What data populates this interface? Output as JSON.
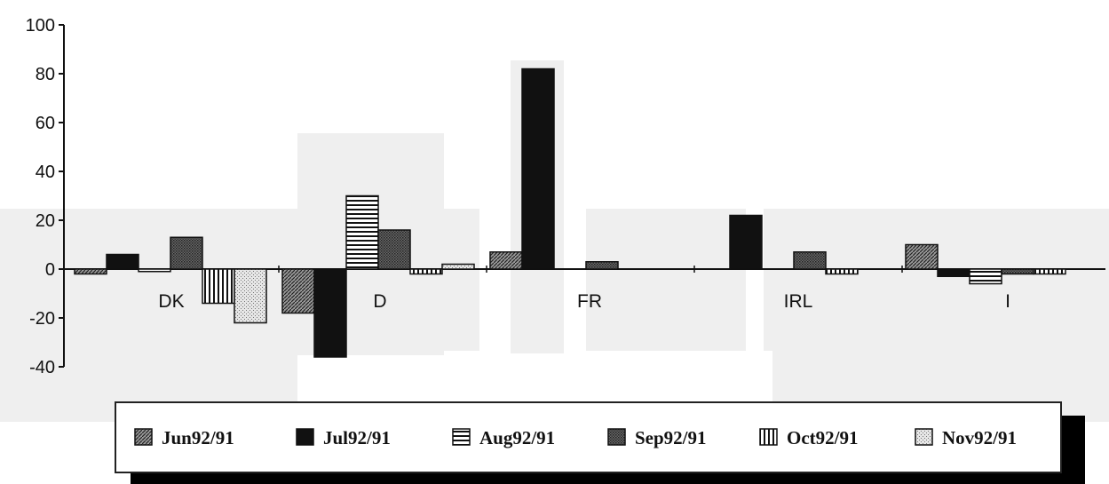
{
  "chart_data": {
    "type": "bar",
    "categories": [
      "DK",
      "D",
      "FR",
      "IRL",
      "I"
    ],
    "series": [
      {
        "name": "Jun92/91",
        "values": [
          -2,
          -18,
          7,
          0,
          10
        ],
        "pattern": "diag"
      },
      {
        "name": "Jul92/91",
        "values": [
          6,
          -36,
          82,
          22,
          -3
        ],
        "pattern": "solid"
      },
      {
        "name": "Aug92/91",
        "values": [
          -1,
          30,
          0,
          0,
          -6
        ],
        "pattern": "hlines"
      },
      {
        "name": "Sep92/91",
        "values": [
          13,
          16,
          3,
          7,
          -2
        ],
        "pattern": "dense"
      },
      {
        "name": "Oct92/91",
        "values": [
          -14,
          -2,
          0,
          -2,
          -2
        ],
        "pattern": "vlines"
      },
      {
        "name": "Nov92/91",
        "values": [
          -22,
          2,
          0,
          0,
          0
        ],
        "pattern": "dots"
      }
    ],
    "ylim": [
      -40,
      100
    ],
    "yticks": [
      -40,
      -20,
      0,
      20,
      40,
      60,
      80,
      100
    ],
    "legend": "bottom",
    "colors": {
      "dark": "#111111",
      "mid": "#555555",
      "light": "#dddddd",
      "background_block": "#efefef"
    }
  }
}
